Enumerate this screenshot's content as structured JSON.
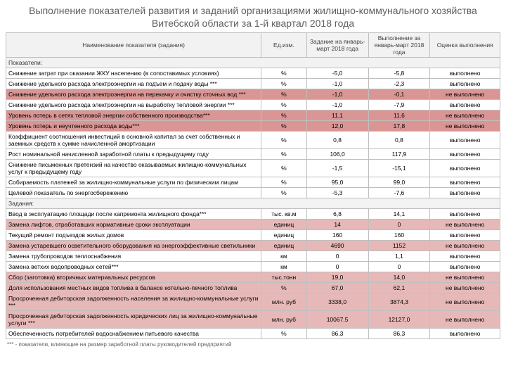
{
  "title": "Выполнение показателей развития и заданий организациями жилищно-коммунального хозяйства Витебской области за 1-й квартал 2018 года",
  "headers": {
    "name": "Наименование показателя (задания)",
    "unit": "Ед.изм.",
    "task": "Задание на январь-март 2018 года",
    "done": "Выполнение за январь-март 2018 года",
    "status": "Оценка выполнения"
  },
  "section1": "Показатели:",
  "section2": "Задания:",
  "footnote": "*** - показатели, влияющие на размер заработной платы руководителей предприятий",
  "status_done": "выполнено",
  "status_not": "не выполнено",
  "colors": {
    "done_bg": "#ffffff",
    "not_bg": "#d99694",
    "not_bg_light": "#e6b9b8",
    "header_bg": "#f2f2f2",
    "border": "#bfbfbf",
    "title_color": "#606060"
  },
  "rows1": [
    {
      "name": "Снижение затрат при оказании ЖКУ населению (в сопоставимых условиях)",
      "unit": "%",
      "task": "-5,0",
      "done": "-5,8",
      "ok": true
    },
    {
      "name": "Снижение удельного расхода электроэнергии на подъем и подачу воды ***",
      "unit": "%",
      "task": "-1,0",
      "done": "-2,3",
      "ok": true
    },
    {
      "name": "Снижение удельного расхода электроэнергии на перекачку и очистку сточных вод ***",
      "unit": "%",
      "task": "-1,0",
      "done": "-0,1",
      "ok": false
    },
    {
      "name": "Снижение удельного расхода электроэнергии на выработку тепловой энергии ***",
      "unit": "%",
      "task": "-1,0",
      "done": "-7,9",
      "ok": true
    },
    {
      "name": "Уровень потерь в сетях тепловой энергии собственного производства***",
      "unit": "%",
      "task": "11,1",
      "done": "11,6",
      "ok": false
    },
    {
      "name": "Уровень потерь и неучтенного расхода воды***",
      "unit": "%",
      "task": "12,0",
      "done": "17,8",
      "ok": false
    },
    {
      "name": "Коэффициент соотношения инвестиций в основной капитал за счет собственных и заемных средств к сумме начисленной амортизации",
      "unit": "%",
      "task": "0,8",
      "done": "0,8",
      "ok": true
    },
    {
      "name": "Рост номинальной начисленной заработной платы к предыдущему году",
      "unit": "%",
      "task": "106,0",
      "done": "117,9",
      "ok": true
    },
    {
      "name": "Снижение письменных претензий на качество оказываемых жилищно-коммунальных услуг к предыдущему году",
      "unit": "%",
      "task": "-1,5",
      "done": "-15,1",
      "ok": true
    },
    {
      "name": "Собираемость платежей за жилищно-коммунальные услуги по физическим лицам",
      "unit": "%",
      "task": "95,0",
      "done": "99,0",
      "ok": true
    },
    {
      "name": "Целевой показатель по энергосбережению",
      "unit": "%",
      "task": "-5,3",
      "done": "-7,6",
      "ok": true
    }
  ],
  "rows2": [
    {
      "name": "Ввод в эксплуатацию площади после капремонта жилищного фонда***",
      "unit": "тыс. кв.м",
      "task": "6,8",
      "done": "14,1",
      "ok": true
    },
    {
      "name": "Замена лифтов, отработавших нормативные сроки эксплуатации",
      "unit": "единиц",
      "task": "14",
      "done": "0",
      "ok": false
    },
    {
      "name": "Текущий ремонт подъездов жилых домов",
      "unit": "единиц",
      "task": "160",
      "done": "160",
      "ok": true
    },
    {
      "name": "Замена устаревшего осветительного оборудования на энергоэффективные светильники",
      "unit": "единиц",
      "task": "4690",
      "done": "1152",
      "ok": false
    },
    {
      "name": "Замена трубопроводов теплоснабжения",
      "unit": "км",
      "task": "0",
      "done": "1,1",
      "ok": true
    },
    {
      "name": "Замена ветхих водопроводных сетей***",
      "unit": "км",
      "task": "0",
      "done": "0",
      "ok": true
    },
    {
      "name": "Сбор (заготовка) вторичных материальных ресурсов",
      "unit": "тыс.тонн",
      "task": "19,0",
      "done": "14,0",
      "ok": false
    },
    {
      "name": "Доля использования местных видов топлива в балансе котельно-печного топлива",
      "unit": "%",
      "task": "67,0",
      "done": "62,1",
      "ok": false
    },
    {
      "name": "Просроченная дебиторская задолженность населения за жилищно-коммунальные услуги ***",
      "unit": "млн. руб",
      "task": "3338,0",
      "done": "3874,3",
      "ok": false
    },
    {
      "name": "Просроченная дебиторская задолженность юридических лиц за жилищно-коммунальные услуги ***",
      "unit": "млн. руб",
      "task": "10067,5",
      "done": "12127,0",
      "ok": false
    },
    {
      "name": "Обеспеченность потребителей водоснабжением питьевого качества",
      "unit": "%",
      "task": "86,3",
      "done": "86,3",
      "ok": true
    }
  ]
}
